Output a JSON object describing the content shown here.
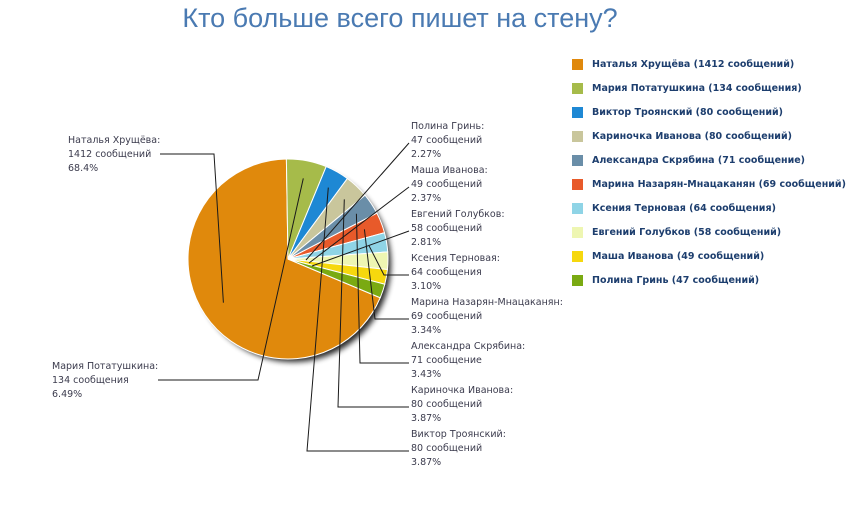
{
  "chart_data": {
    "type": "pie",
    "title": "Кто больше всего пишет на стену?",
    "slices": [
      {
        "name": "Наталья Хрущёва",
        "count": "1412 сообщений",
        "value": 1412,
        "percent": "68.4%",
        "legend": "Наталья Хрущёва (1412 сообщений)",
        "color": "#e0890c"
      },
      {
        "name": "Мария Потатушкина",
        "count": "134 сообщения",
        "value": 134,
        "percent": "6.49%",
        "legend": "Мария Потатушкина (134 сообщения)",
        "color": "#a6bb4a"
      },
      {
        "name": "Виктор Троянский",
        "count": "80 сообщений",
        "value": 80,
        "percent": "3.87%",
        "legend": "Виктор Троянский (80 сообщений)",
        "color": "#1e88d4"
      },
      {
        "name": "Кариночка Иванова",
        "count": "80 сообщений",
        "value": 80,
        "percent": "3.87%",
        "legend": "Кариночка Иванова (80 сообщений)",
        "color": "#c9c69c"
      },
      {
        "name": "Александра Скрябина",
        "count": "71 сообщение",
        "value": 71,
        "percent": "3.43%",
        "legend": "Александра Скрябина (71 сообщение)",
        "color": "#6a8ea8"
      },
      {
        "name": "Марина Назарян-Мнацаканян",
        "count": "69 сообщений",
        "value": 69,
        "percent": "3.34%",
        "legend": "Марина Назарян-Мнацаканян (69 сообщений)",
        "color": "#e85a2a"
      },
      {
        "name": "Ксения Терновая",
        "count": "64 сообщения",
        "value": 64,
        "percent": "3.10%",
        "legend": "Ксения Терновая (64 сообщения)",
        "color": "#8fd4e6"
      },
      {
        "name": "Евгений Голубков",
        "count": "58 сообщений",
        "value": 58,
        "percent": "2.81%",
        "legend": "Евгений Голубков (58 сообщений)",
        "color": "#eef6b2"
      },
      {
        "name": "Маша Иванова",
        "count": "49 сообщений",
        "value": 49,
        "percent": "2.37%",
        "legend": "Маша Иванова (49 сообщений)",
        "color": "#f6d80e"
      },
      {
        "name": "Полина Гринь",
        "count": "47 сообщений",
        "value": 47,
        "percent": "2.27%",
        "legend": "Полина Гринь (47 сообщений)",
        "color": "#7aaa12"
      }
    ],
    "legend_position": "right"
  }
}
